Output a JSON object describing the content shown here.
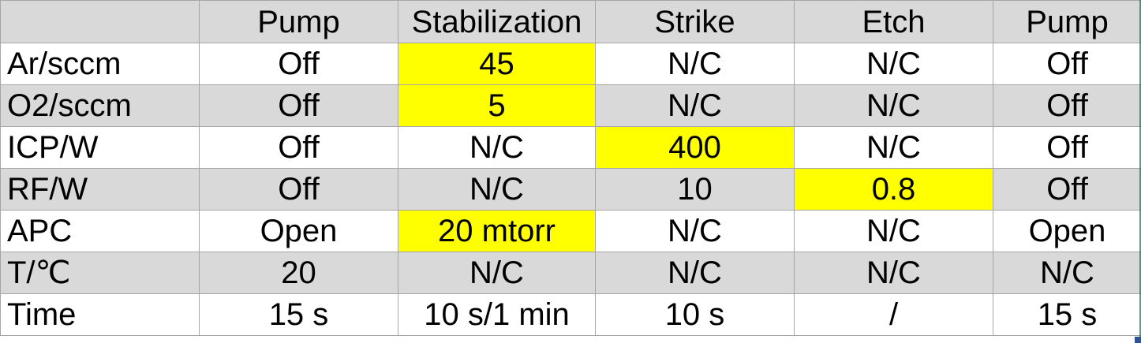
{
  "columns": [
    "",
    "Pump",
    "Stabilization",
    "Strike",
    "Etch",
    "Pump"
  ],
  "rows": [
    {
      "label": "Ar/sccm",
      "cells": [
        "Off",
        "45",
        "N/C",
        "N/C",
        "Off"
      ]
    },
    {
      "label": "O2/sccm",
      "cells": [
        "Off",
        "5",
        "N/C",
        "N/C",
        "Off"
      ]
    },
    {
      "label": "ICP/W",
      "cells": [
        "Off",
        "N/C",
        "400",
        "N/C",
        "Off"
      ]
    },
    {
      "label": "RF/W",
      "cells": [
        "Off",
        "N/C",
        "10",
        "0.8",
        "Off"
      ]
    },
    {
      "label": "APC",
      "cells": [
        "Open",
        "20 mtorr",
        "N/C",
        "N/C",
        "Open"
      ]
    },
    {
      "label": "T/℃",
      "cells": [
        "20",
        "N/C",
        "N/C",
        "N/C",
        "N/C"
      ]
    },
    {
      "label": "Time",
      "cells": [
        "15 s",
        "10 s/1 min",
        "10 s",
        "/",
        "15 s"
      ]
    }
  ],
  "colors": {
    "highlight": "#ffff00",
    "shade": "#d9d9d9",
    "grid": "#a6a6a6"
  }
}
